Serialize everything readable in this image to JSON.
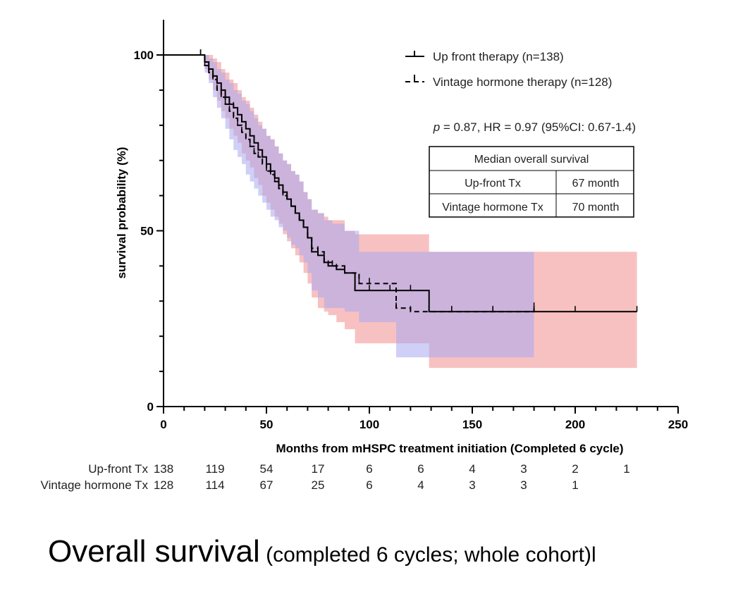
{
  "chart_data": {
    "type": "line",
    "subtype": "kaplan-meier",
    "xlabel": "Months from mHSPC treatment initiation (Completed 6 cycle)",
    "ylabel": "survival probability (%)",
    "xlim": [
      0,
      250
    ],
    "ylim": [
      0,
      100
    ],
    "x_ticks": [
      0,
      50,
      100,
      150,
      200,
      250
    ],
    "y_ticks": [
      0,
      50,
      100
    ],
    "grid": false,
    "legend_position": "top-right",
    "series": [
      {
        "name": "Up front therapy (n=138)",
        "style": "solid",
        "color": "#000000",
        "ci_color": "#f4a0a0",
        "x": [
          0,
          18,
          20,
          22,
          24,
          26,
          28,
          30,
          32,
          34,
          36,
          38,
          40,
          42,
          44,
          46,
          48,
          50,
          52,
          54,
          56,
          58,
          60,
          62,
          64,
          66,
          68,
          70,
          72,
          75,
          78,
          80,
          84,
          88,
          93,
          100,
          110,
          120,
          129,
          140,
          160,
          180,
          200,
          230
        ],
        "y": [
          100,
          100,
          98,
          96,
          94,
          92,
          90,
          88,
          86,
          85,
          83,
          81,
          79,
          77,
          75,
          73,
          71,
          69,
          67,
          65,
          63,
          61,
          59,
          57,
          55,
          53,
          51,
          48,
          44,
          43,
          41,
          40,
          39,
          38,
          33,
          33,
          33,
          33,
          27,
          27,
          27,
          27,
          27,
          27
        ],
        "ci_lower": [
          100,
          100,
          96,
          93,
          90,
          87,
          84,
          82,
          79,
          77,
          75,
          72,
          70,
          68,
          65,
          63,
          60,
          58,
          56,
          54,
          52,
          49,
          47,
          45,
          43,
          41,
          38,
          35,
          31,
          28,
          27,
          26,
          24,
          22,
          18,
          18,
          18,
          18,
          11,
          11,
          11,
          11,
          11,
          11
        ],
        "ci_upper": [
          100,
          100,
          100,
          100,
          99,
          98,
          96,
          95,
          93,
          92,
          90,
          88,
          87,
          85,
          83,
          81,
          79,
          77,
          76,
          74,
          72,
          70,
          69,
          67,
          66,
          64,
          61,
          59,
          56,
          55,
          54,
          53,
          53,
          50,
          49,
          49,
          49,
          49,
          44,
          44,
          44,
          44,
          44,
          44
        ],
        "at_risk": [
          138,
          119,
          54,
          17,
          6,
          6,
          4,
          3,
          2,
          1
        ]
      },
      {
        "name": "Vintage hormone therapy (n=128)",
        "style": "dashed",
        "color": "#000000",
        "ci_color": "#a8a8f0",
        "x": [
          0,
          18,
          20,
          22,
          24,
          26,
          28,
          30,
          32,
          34,
          36,
          38,
          40,
          42,
          44,
          46,
          48,
          50,
          52,
          54,
          56,
          58,
          60,
          62,
          64,
          66,
          68,
          70,
          72,
          75,
          78,
          82,
          88,
          95,
          100,
          113,
          120,
          140,
          160,
          180
        ],
        "y": [
          100,
          100,
          97,
          95,
          93,
          90,
          88,
          86,
          84,
          82,
          80,
          78,
          76,
          74,
          72,
          71,
          69,
          67,
          66,
          64,
          62,
          60,
          59,
          57,
          55,
          53,
          51,
          48,
          45,
          44,
          41,
          40,
          38,
          35,
          35,
          28,
          27,
          27,
          27,
          28
        ],
        "ci_lower": [
          100,
          100,
          95,
          92,
          88,
          85,
          82,
          79,
          76,
          73,
          71,
          69,
          66,
          64,
          62,
          60,
          58,
          56,
          54,
          53,
          51,
          50,
          48,
          46,
          45,
          43,
          41,
          38,
          33,
          31,
          28,
          28,
          27,
          24,
          24,
          14,
          14,
          14,
          14,
          14
        ],
        "ci_upper": [
          100,
          100,
          100,
          99,
          98,
          96,
          95,
          93,
          92,
          90,
          89,
          87,
          86,
          84,
          82,
          80,
          79,
          77,
          76,
          74,
          72,
          70,
          69,
          67,
          66,
          64,
          61,
          59,
          56,
          55,
          53,
          52,
          50,
          44,
          44,
          44,
          44,
          44,
          44,
          44
        ],
        "at_risk": [
          128,
          114,
          67,
          25,
          6,
          4,
          3,
          3,
          1
        ]
      }
    ],
    "annotations": {
      "p_label": "p",
      "stat_rest": " = 0.87, HR = 0.97 (95%CI: 0.67-1.4)"
    },
    "median_table": {
      "header": "Median overall survival",
      "rows": [
        {
          "label": "Up-front Tx",
          "value": "67 month"
        },
        {
          "label": "Vintage hormone Tx",
          "value": "70 month"
        }
      ]
    },
    "risk_table": {
      "rows": [
        {
          "label": "Up-front Tx",
          "counts": [
            138,
            119,
            54,
            17,
            6,
            6,
            4,
            3,
            2,
            1
          ]
        },
        {
          "label": "Vintage hormone Tx",
          "counts": [
            128,
            114,
            67,
            25,
            6,
            4,
            3,
            3,
            1
          ]
        }
      ]
    }
  },
  "caption": {
    "main": "Overall survival",
    "sub": " (completed 6 cycles; whole cohort)l"
  }
}
